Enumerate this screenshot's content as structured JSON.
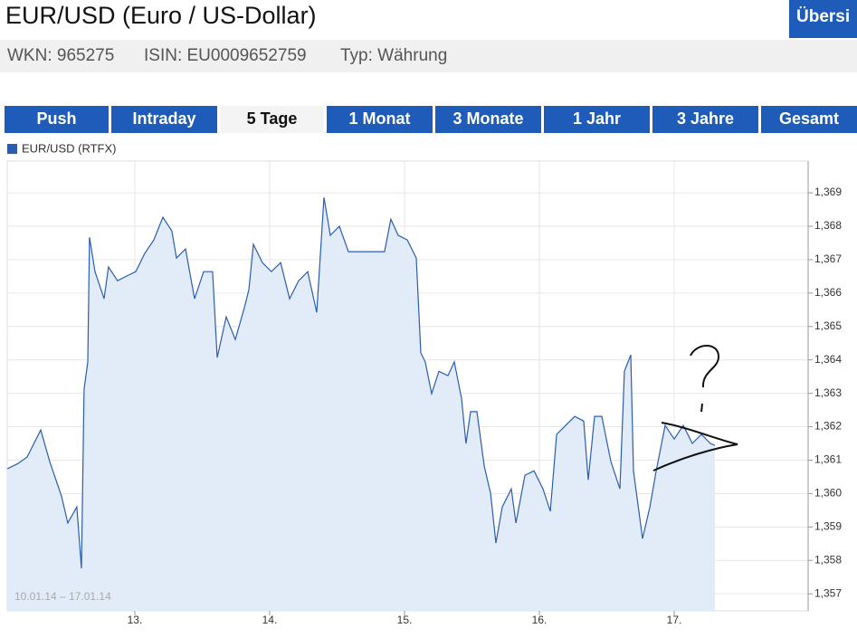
{
  "header": {
    "title": "EUR/USD (Euro / US-Dollar)",
    "button": "Übersi",
    "wkn": "WKN: 965275",
    "isin": "ISIN: EU0009652759",
    "typ": "Typ: Währung"
  },
  "tabs": {
    "items": [
      "Push",
      "Intraday",
      "5 Tage",
      "1 Monat",
      "3 Monate",
      "1 Jahr",
      "3 Jahre",
      "Gesamt"
    ],
    "active": 2
  },
  "chart_data": {
    "type": "area",
    "series": [
      {
        "name": "EUR/USD (RTFX)",
        "color": "#2a5db0",
        "x": [
          12.054,
          12.134,
          12.201,
          12.302,
          12.369,
          12.456,
          12.503,
          12.57,
          12.604,
          12.624,
          12.651,
          12.664,
          12.705,
          12.772,
          12.805,
          12.872,
          12.94,
          13.007,
          13.074,
          13.141,
          13.208,
          13.275,
          13.309,
          13.376,
          13.443,
          13.51,
          13.577,
          13.611,
          13.678,
          13.745,
          13.812,
          13.846,
          13.879,
          13.946,
          14.013,
          14.081,
          14.148,
          14.215,
          14.282,
          14.349,
          14.403,
          14.45,
          14.517,
          14.584,
          14.852,
          14.899,
          14.953,
          15.02,
          15.087,
          15.121,
          15.154,
          15.201,
          15.255,
          15.322,
          15.369,
          15.423,
          15.456,
          15.49,
          15.537,
          15.591,
          15.638,
          15.678,
          15.725,
          15.792,
          15.826,
          15.893,
          15.96,
          16.027,
          16.081,
          16.128,
          16.195,
          16.262,
          16.329,
          16.362,
          16.409,
          16.463,
          16.53,
          16.597,
          16.631,
          16.678,
          16.698,
          16.765,
          16.819,
          16.866,
          16.933,
          17.0,
          17.067,
          17.134,
          17.201,
          17.268,
          17.302
        ],
        "values": [
          1.36074,
          1.3609,
          1.36109,
          1.3619,
          1.36096,
          1.35993,
          1.35912,
          1.3596,
          1.35776,
          1.36312,
          1.36394,
          1.36767,
          1.36664,
          1.36583,
          1.36678,
          1.36637,
          1.36651,
          1.36664,
          1.36719,
          1.36759,
          1.36827,
          1.36786,
          1.36705,
          1.36732,
          1.36583,
          1.36664,
          1.36664,
          1.36407,
          1.36529,
          1.36461,
          1.36556,
          1.3661,
          1.36746,
          1.36691,
          1.36664,
          1.36691,
          1.36583,
          1.36637,
          1.36664,
          1.36542,
          1.36886,
          1.36773,
          1.368,
          1.36724,
          1.36724,
          1.36821,
          1.36773,
          1.36759,
          1.36705,
          1.36421,
          1.36394,
          1.36299,
          1.36366,
          1.36353,
          1.36394,
          1.36285,
          1.3615,
          1.36245,
          1.36245,
          1.36082,
          1.36001,
          1.35852,
          1.3596,
          1.36014,
          1.35912,
          1.36055,
          1.36068,
          1.36014,
          1.35947,
          1.36177,
          1.36204,
          1.36231,
          1.36217,
          1.36041,
          1.36231,
          1.36231,
          1.36096,
          1.36014,
          1.36366,
          1.36415,
          1.36068,
          1.35865,
          1.3596,
          1.36068,
          1.36204,
          1.36163,
          1.36204,
          1.3615,
          1.36177,
          1.3615,
          1.36144
        ]
      }
    ],
    "fill": "#e2ebf8",
    "date_range": "10.01.14 – 17.01.14",
    "grid": true,
    "xlim": [
      12.054,
      17.993
    ],
    "ylim": [
      1.35649,
      1.36995
    ],
    "xticks": [
      {
        "value": 13,
        "label": "13."
      },
      {
        "value": 14,
        "label": "14."
      },
      {
        "value": 15,
        "label": "15."
      },
      {
        "value": 16,
        "label": "16."
      },
      {
        "value": 17,
        "label": "17."
      }
    ],
    "yticks": [
      {
        "value": 1.357,
        "label": "1,357"
      },
      {
        "value": 1.358,
        "label": "1,358"
      },
      {
        "value": 1.359,
        "label": "1,359"
      },
      {
        "value": 1.36,
        "label": "1,360"
      },
      {
        "value": 1.361,
        "label": "1,361"
      },
      {
        "value": 1.362,
        "label": "1,362"
      },
      {
        "value": 1.363,
        "label": "1,363"
      },
      {
        "value": 1.364,
        "label": "1,364"
      },
      {
        "value": 1.365,
        "label": "1,365"
      },
      {
        "value": 1.366,
        "label": "1,366"
      },
      {
        "value": 1.367,
        "label": "1,367"
      },
      {
        "value": 1.368,
        "label": "1,368"
      },
      {
        "value": 1.369,
        "label": "1,369"
      }
    ]
  }
}
